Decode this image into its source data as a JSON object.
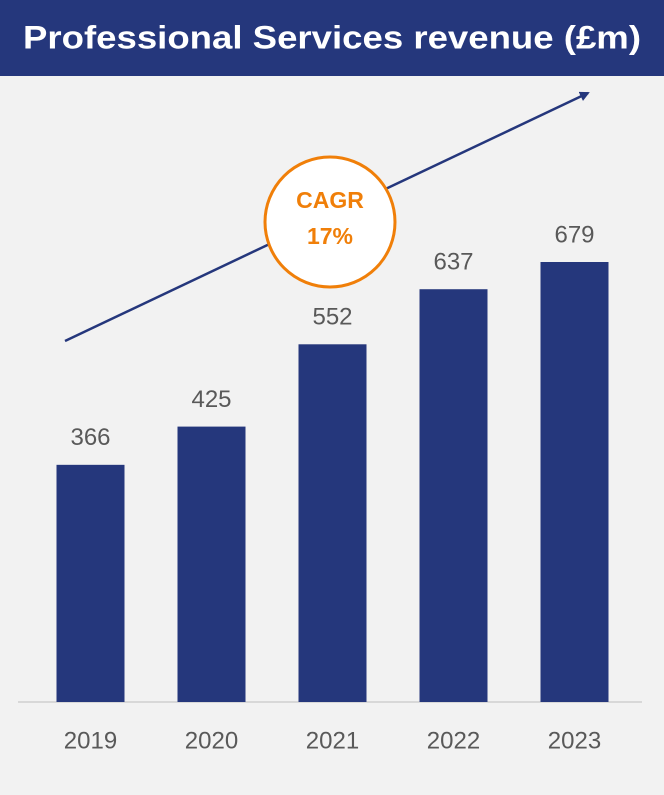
{
  "chart_data": {
    "type": "bar",
    "title": "Professional Services revenue (£m)",
    "categories": [
      "2019",
      "2020",
      "2021",
      "2022",
      "2023"
    ],
    "values": [
      366,
      425,
      552,
      637,
      679
    ],
    "color": "#25377c",
    "annotations": [
      "CAGR",
      "17%"
    ]
  }
}
